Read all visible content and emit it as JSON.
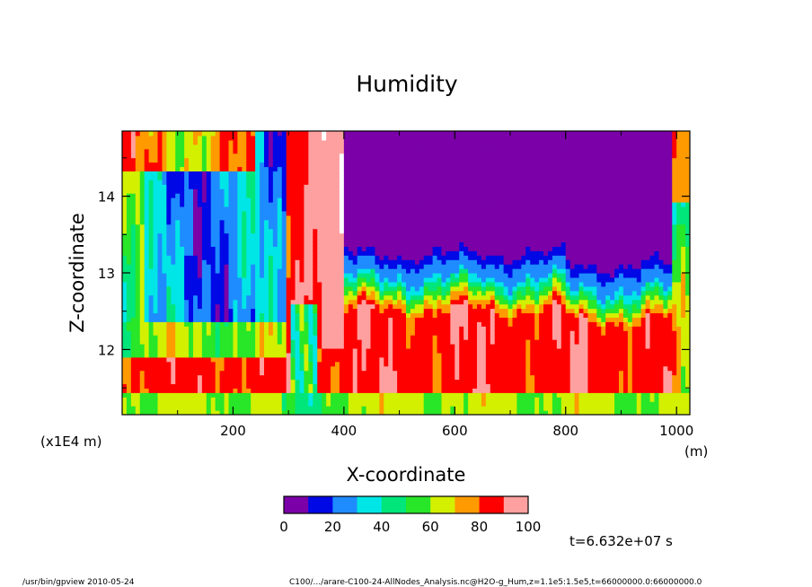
{
  "chart_data": {
    "type": "heatmap",
    "title": "Humidity",
    "xlabel": "X-coordinate",
    "ylabel": "Z-coordinate",
    "x_unit": "(m)",
    "y_unit": "(x1E4 m)",
    "xlim": [
      0,
      1024
    ],
    "ylim": [
      11.15,
      14.85
    ],
    "xticks": [
      200,
      400,
      600,
      800,
      1000
    ],
    "yticks": [
      12,
      13,
      14
    ],
    "xtick_labels": [
      "200",
      "400",
      "600",
      "800",
      "1000"
    ],
    "ytick_labels": [
      "12",
      "13",
      "14"
    ],
    "colorbar": {
      "levels": [
        0,
        10,
        20,
        30,
        40,
        50,
        60,
        70,
        80,
        90,
        100
      ],
      "tick_labels": [
        "0",
        "20",
        "40",
        "60",
        "80",
        "100"
      ],
      "colors": [
        "#7b00a8",
        "#0008e6",
        "#1e8cff",
        "#00e6e6",
        "#00e67a",
        "#28e628",
        "#d2f000",
        "#ff9a00",
        "#ff0000",
        "#ffa0a0"
      ]
    },
    "time_label": "t=6.632e+07 s",
    "grid": false,
    "legend": "colorbar below plot"
  },
  "footer": {
    "left": "/usr/bin/gpview   2010-05-24",
    "right": "C100/.../arare-C100-24-AllNodes_Analysis.nc@H2O-g_Hum,z=1.1e5:1.5e5,t=66000000.0:66000000.0"
  }
}
